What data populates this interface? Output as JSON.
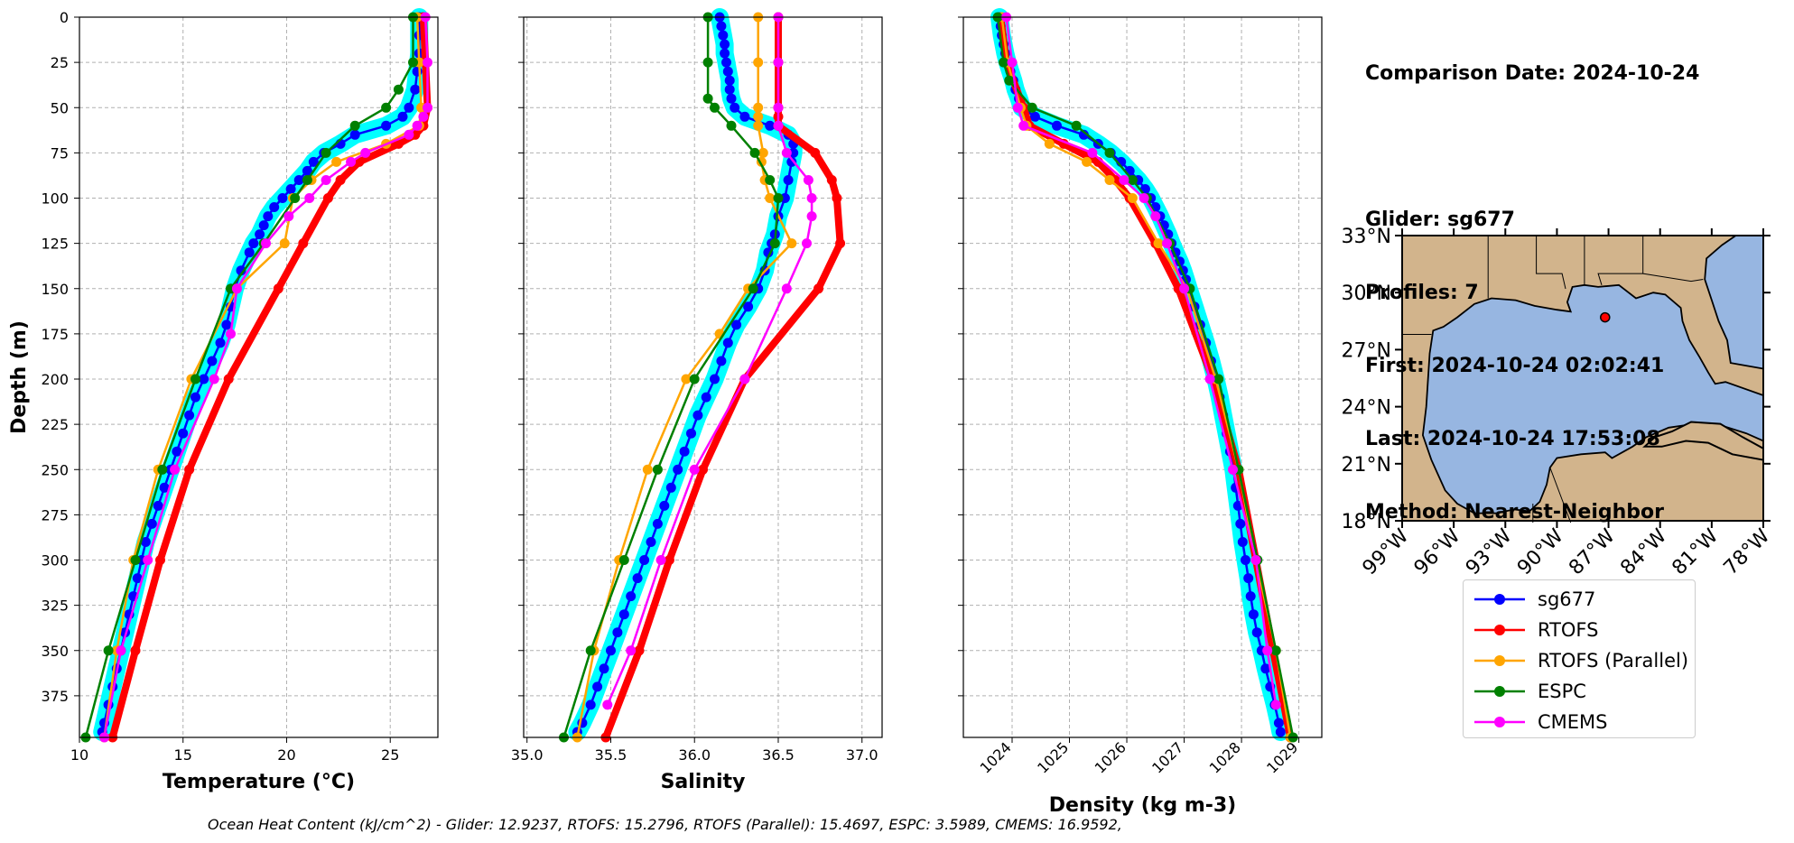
{
  "chart_data": [
    {
      "type": "line",
      "xlabel": "Temperature (°C)",
      "ylabel": "Depth (m)",
      "xlim": [
        10,
        27.3
      ],
      "ylim": [
        398,
        0
      ],
      "xticks": [
        10,
        15,
        20,
        25
      ],
      "yticks": [
        0,
        25,
        50,
        75,
        100,
        125,
        150,
        175,
        200,
        225,
        250,
        275,
        300,
        325,
        350,
        375
      ],
      "grid": true,
      "series": [
        {
          "name": "sg677",
          "color": "#0000ff",
          "band": true,
          "depth": [
            0,
            10,
            20,
            30,
            40,
            50,
            55,
            60,
            65,
            70,
            75,
            80,
            85,
            90,
            95,
            100,
            105,
            110,
            115,
            120,
            125,
            130,
            140,
            150,
            160,
            170,
            180,
            190,
            200,
            210,
            220,
            230,
            240,
            250,
            260,
            270,
            280,
            290,
            300,
            310,
            320,
            330,
            340,
            350,
            360,
            370,
            380,
            390,
            395
          ],
          "values": [
            26.4,
            26.4,
            26.4,
            26.3,
            26.2,
            25.9,
            25.6,
            24.8,
            23.3,
            22.6,
            21.8,
            21.3,
            21.0,
            20.6,
            20.2,
            19.8,
            19.4,
            19.1,
            18.9,
            18.7,
            18.4,
            18.2,
            17.8,
            17.5,
            17.3,
            17.1,
            16.8,
            16.4,
            16.0,
            15.6,
            15.3,
            15.0,
            14.7,
            14.4,
            14.1,
            13.8,
            13.5,
            13.2,
            13.0,
            12.8,
            12.6,
            12.4,
            12.2,
            12.0,
            11.8,
            11.6,
            11.4,
            11.2,
            11.1
          ]
        },
        {
          "name": "RTOFS",
          "color": "#ff0000",
          "depth": [
            0,
            25,
            50,
            60,
            65,
            70,
            80,
            90,
            100,
            125,
            150,
            200,
            250,
            300,
            350,
            398
          ],
          "values": [
            26.6,
            26.7,
            26.8,
            26.6,
            26.2,
            25.4,
            23.5,
            22.6,
            22.0,
            20.8,
            19.6,
            17.2,
            15.3,
            13.9,
            12.7,
            11.6
          ]
        },
        {
          "name": "RTOFS (Parallel)",
          "color": "#ffa500",
          "depth": [
            0,
            25,
            50,
            60,
            70,
            80,
            90,
            100,
            125,
            150,
            200,
            250,
            300,
            350,
            398
          ],
          "values": [
            26.3,
            26.4,
            26.5,
            26.4,
            24.8,
            22.4,
            21.2,
            20.3,
            19.9,
            17.6,
            15.4,
            13.8,
            12.6,
            11.8,
            11.2
          ]
        },
        {
          "name": "ESPC",
          "color": "#008000",
          "depth": [
            0,
            25,
            40,
            50,
            60,
            75,
            90,
            100,
            125,
            150,
            200,
            250,
            300,
            350,
            398
          ],
          "values": [
            26.1,
            26.1,
            25.4,
            24.8,
            23.3,
            21.9,
            21.0,
            20.4,
            18.9,
            17.3,
            15.6,
            14.0,
            12.7,
            11.4,
            10.3
          ]
        },
        {
          "name": "CMEMS",
          "color": "#ff00ff",
          "depth": [
            0,
            25,
            50,
            55,
            60,
            65,
            75,
            80,
            90,
            100,
            110,
            125,
            150,
            175,
            200,
            250,
            300,
            350,
            398
          ],
          "values": [
            26.7,
            26.8,
            26.8,
            26.6,
            26.3,
            25.9,
            23.8,
            23.1,
            21.9,
            21.1,
            20.1,
            19.0,
            17.6,
            17.3,
            16.5,
            14.6,
            13.3,
            12.0,
            11.2
          ]
        }
      ]
    },
    {
      "type": "line",
      "xlabel": "Salinity",
      "xlim": [
        34.98,
        37.12
      ],
      "ylim": [
        398,
        0
      ],
      "xticks": [
        35.0,
        35.5,
        36.0,
        36.5,
        37.0
      ],
      "grid": true,
      "series": [
        {
          "name": "sg677",
          "color": "#0000ff",
          "band": true,
          "depth": [
            0,
            5,
            10,
            15,
            20,
            25,
            30,
            35,
            40,
            45,
            50,
            55,
            60,
            65,
            70,
            75,
            80,
            90,
            100,
            110,
            120,
            125,
            130,
            140,
            150,
            160,
            170,
            180,
            190,
            200,
            210,
            220,
            230,
            240,
            250,
            260,
            270,
            280,
            290,
            300,
            310,
            320,
            330,
            340,
            350,
            360,
            370,
            380,
            390,
            395
          ],
          "values": [
            36.15,
            36.16,
            36.17,
            36.18,
            36.18,
            36.19,
            36.2,
            36.21,
            36.21,
            36.22,
            36.24,
            36.3,
            36.45,
            36.56,
            36.59,
            36.59,
            36.58,
            36.56,
            36.54,
            36.5,
            36.48,
            36.46,
            36.44,
            36.42,
            36.38,
            36.32,
            36.25,
            36.2,
            36.16,
            36.12,
            36.07,
            36.02,
            35.98,
            35.94,
            35.9,
            35.86,
            35.82,
            35.78,
            35.74,
            35.7,
            35.66,
            35.62,
            35.58,
            35.54,
            35.5,
            35.46,
            35.42,
            35.38,
            35.33,
            35.3
          ]
        },
        {
          "name": "RTOFS",
          "color": "#ff0000",
          "depth": [
            0,
            25,
            50,
            55,
            60,
            75,
            90,
            100,
            125,
            150,
            200,
            250,
            300,
            350,
            398
          ],
          "values": [
            36.5,
            36.5,
            36.5,
            36.5,
            36.5,
            36.72,
            36.82,
            36.85,
            36.87,
            36.74,
            36.3,
            36.05,
            35.85,
            35.67,
            35.47
          ]
        },
        {
          "name": "RTOFS (Parallel)",
          "color": "#ffa500",
          "depth": [
            0,
            25,
            50,
            55,
            60,
            75,
            80,
            90,
            100,
            125,
            150,
            175,
            200,
            250,
            300,
            350,
            398
          ],
          "values": [
            36.38,
            36.38,
            36.38,
            36.38,
            36.38,
            36.41,
            36.4,
            36.42,
            36.45,
            36.58,
            36.32,
            36.15,
            35.95,
            35.72,
            35.55,
            35.4,
            35.3
          ]
        },
        {
          "name": "ESPC",
          "color": "#008000",
          "depth": [
            0,
            25,
            45,
            50,
            60,
            75,
            90,
            100,
            125,
            150,
            200,
            250,
            300,
            350,
            398
          ],
          "values": [
            36.08,
            36.08,
            36.08,
            36.12,
            36.22,
            36.36,
            36.45,
            36.5,
            36.48,
            36.35,
            36.0,
            35.78,
            35.58,
            35.38,
            35.22
          ]
        },
        {
          "name": "CMEMS",
          "color": "#ff00ff",
          "depth": [
            0,
            25,
            50,
            60,
            75,
            90,
            100,
            110,
            125,
            150,
            200,
            250,
            300,
            350,
            380
          ],
          "values": [
            36.5,
            36.5,
            36.5,
            36.5,
            36.55,
            36.68,
            36.7,
            36.7,
            36.67,
            36.55,
            36.3,
            36.0,
            35.8,
            35.62,
            35.48
          ]
        }
      ]
    },
    {
      "type": "line",
      "xlabel": "Density (kg m-3)",
      "xlim": [
        1023.15,
        1029.4
      ],
      "ylim": [
        398,
        0
      ],
      "xticks": [
        1024,
        1025,
        1026,
        1027,
        1028,
        1029
      ],
      "grid": true,
      "series": [
        {
          "name": "sg677",
          "color": "#0000ff",
          "band": true,
          "depth": [
            0,
            5,
            10,
            15,
            20,
            25,
            30,
            35,
            40,
            45,
            50,
            55,
            60,
            65,
            70,
            75,
            80,
            85,
            90,
            95,
            100,
            105,
            110,
            115,
            120,
            125,
            130,
            135,
            140,
            145,
            150,
            160,
            170,
            180,
            190,
            200,
            210,
            220,
            230,
            240,
            250,
            260,
            270,
            280,
            290,
            300,
            310,
            320,
            330,
            340,
            350,
            360,
            370,
            380,
            390,
            395
          ],
          "values": [
            1023.78,
            1023.8,
            1023.82,
            1023.85,
            1023.88,
            1023.92,
            1023.97,
            1024.02,
            1024.06,
            1024.12,
            1024.17,
            1024.4,
            1024.78,
            1025.25,
            1025.5,
            1025.72,
            1025.9,
            1026.05,
            1026.2,
            1026.32,
            1026.42,
            1026.5,
            1026.58,
            1026.65,
            1026.72,
            1026.78,
            1026.85,
            1026.92,
            1026.98,
            1027.03,
            1027.08,
            1027.18,
            1027.28,
            1027.38,
            1027.47,
            1027.55,
            1027.62,
            1027.68,
            1027.74,
            1027.8,
            1027.86,
            1027.9,
            1027.94,
            1027.98,
            1028.02,
            1028.07,
            1028.12,
            1028.16,
            1028.21,
            1028.27,
            1028.35,
            1028.42,
            1028.5,
            1028.58,
            1028.65,
            1028.68
          ]
        },
        {
          "name": "RTOFS",
          "color": "#ff0000",
          "depth": [
            0,
            25,
            50,
            60,
            70,
            80,
            90,
            100,
            125,
            150,
            200,
            250,
            300,
            350,
            398
          ],
          "values": [
            1023.8,
            1023.9,
            1024.2,
            1024.3,
            1024.9,
            1025.5,
            1025.8,
            1026.05,
            1026.5,
            1026.9,
            1027.5,
            1027.95,
            1028.25,
            1028.55,
            1028.85
          ]
        },
        {
          "name": "RTOFS (Parallel)",
          "color": "#ffa500",
          "depth": [
            0,
            25,
            50,
            60,
            70,
            80,
            90,
            100,
            125,
            150,
            200,
            250,
            300,
            350,
            398
          ],
          "values": [
            1023.82,
            1023.92,
            1024.15,
            1024.25,
            1024.65,
            1025.3,
            1025.7,
            1026.1,
            1026.55,
            1027.05,
            1027.55,
            1027.95,
            1028.25,
            1028.6,
            1028.85
          ]
        },
        {
          "name": "ESPC",
          "color": "#008000",
          "depth": [
            0,
            25,
            35,
            50,
            60,
            75,
            90,
            100,
            125,
            150,
            200,
            250,
            300,
            350,
            398
          ],
          "values": [
            1023.75,
            1023.85,
            1023.95,
            1024.35,
            1025.12,
            1025.7,
            1026.1,
            1026.35,
            1026.75,
            1027.1,
            1027.6,
            1027.95,
            1028.28,
            1028.6,
            1028.9
          ]
        },
        {
          "name": "CMEMS",
          "color": "#ff00ff",
          "depth": [
            0,
            25,
            50,
            60,
            75,
            90,
            100,
            110,
            125,
            150,
            200,
            250,
            300,
            350,
            380
          ],
          "values": [
            1023.9,
            1024.0,
            1024.1,
            1024.2,
            1025.4,
            1025.95,
            1026.3,
            1026.5,
            1026.7,
            1027.0,
            1027.45,
            1027.85,
            1028.25,
            1028.45,
            1028.6
          ]
        }
      ]
    },
    {
      "type": "map",
      "xlim": [
        -99,
        -78
      ],
      "ylim": [
        18,
        33
      ],
      "xticks": [
        "99°W",
        "96°W",
        "93°W",
        "90°W",
        "87°W",
        "84°W",
        "81°W",
        "78°W"
      ],
      "yticks": [
        "18°N",
        "21°N",
        "24°N",
        "27°N",
        "30°N",
        "33°N"
      ],
      "land_color": "#d2b48c",
      "ocean_color": "#97b6e1",
      "glider_position": {
        "lon": -87.2,
        "lat": 28.7
      }
    }
  ],
  "info": {
    "line1": "Comparison Date: 2024-10-24",
    "line2": "Glider: sg677",
    "line3": "Profiles: 7",
    "line4": "First: 2024-10-24 02:02:41",
    "line5": "Last: 2024-10-24 17:53:08",
    "line6": "Method: Nearest-Neighbor"
  },
  "legend": [
    {
      "label": "sg677",
      "color": "#0000ff"
    },
    {
      "label": "RTOFS",
      "color": "#ff0000"
    },
    {
      "label": "RTOFS (Parallel)",
      "color": "#ffa500"
    },
    {
      "label": "ESPC",
      "color": "#008000"
    },
    {
      "label": "CMEMS",
      "color": "#ff00ff"
    }
  ],
  "footer": "Ocean Heat Content (kJ/cm^2) - Glider: 12.9237,  RTOFS: 15.2796,  RTOFS (Parallel): 15.4697,  ESPC: 3.5989,  CMEMS: 16.9592,"
}
